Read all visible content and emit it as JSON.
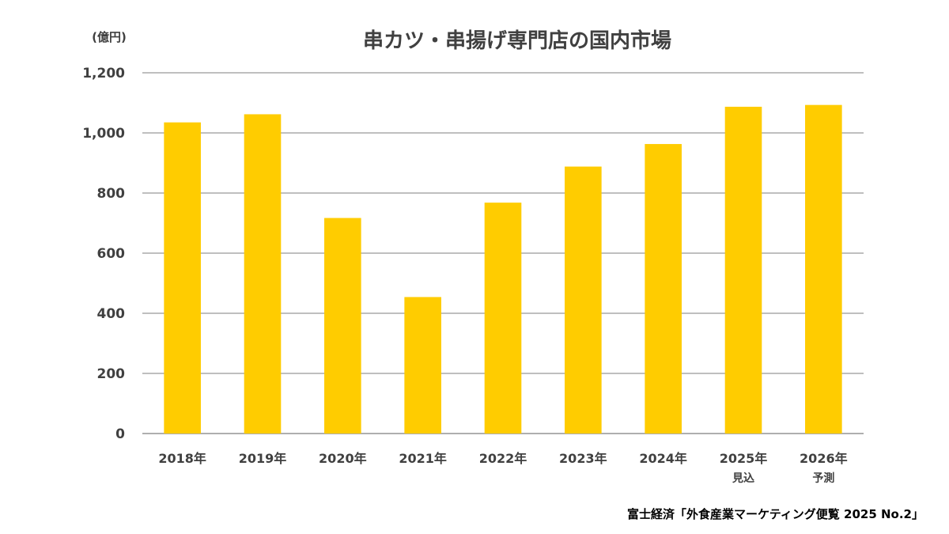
{
  "chart_data": {
    "type": "bar",
    "title": "串カツ・串揚げ専門店の国内市場",
    "unit_label": "(億円)",
    "categories": [
      "2018年",
      "2019年",
      "2020年",
      "2021年",
      "2022年",
      "2023年",
      "2024年",
      "2025年",
      "2026年"
    ],
    "category_notes": [
      "",
      "",
      "",
      "",
      "",
      "",
      "",
      "見込",
      "予測"
    ],
    "values": [
      1035,
      1062,
      717,
      454,
      768,
      888,
      963,
      1087,
      1093
    ],
    "ylim": [
      0,
      1200
    ],
    "yticks": [
      0,
      200,
      400,
      600,
      800,
      1000,
      1200
    ],
    "ytick_labels": [
      "0",
      "200",
      "400",
      "600",
      "800",
      "1,000",
      "1,200"
    ],
    "grid": true,
    "bar_color": "#FFCC00",
    "xlabel": "",
    "ylabel": ""
  },
  "source": "富士経済「外食産業マーケティング便覧 2025 No.2」",
  "colors": {
    "bar": "#FFCC00",
    "grid": "#7F7F7F",
    "text": "#404040"
  }
}
